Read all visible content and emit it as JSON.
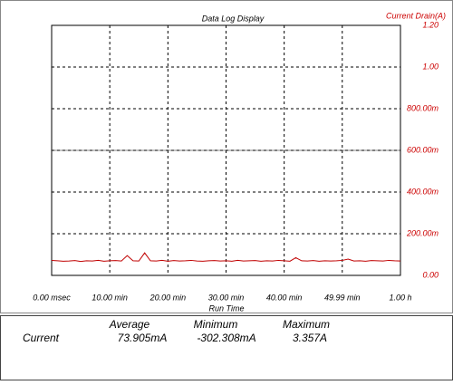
{
  "chart_data": {
    "type": "line",
    "title": "Data Log Display",
    "y_label": "Current Drain(A)",
    "x_label": "Run Time",
    "x": [
      0,
      1,
      2,
      3,
      4,
      5,
      6,
      7,
      8,
      9,
      10,
      11,
      12,
      13,
      14,
      15,
      16,
      17,
      18,
      19,
      20,
      21,
      22,
      23,
      24,
      25,
      26,
      27,
      28,
      29,
      30,
      31,
      32,
      33,
      34,
      35,
      36,
      37,
      38,
      39,
      40,
      41,
      42,
      43,
      44,
      45,
      46,
      47,
      48,
      49,
      50,
      51,
      52,
      53,
      54,
      55,
      56,
      57,
      58,
      59,
      60
    ],
    "values": [
      0.072,
      0.07,
      0.068,
      0.069,
      0.071,
      0.067,
      0.07,
      0.069,
      0.072,
      0.068,
      0.07,
      0.071,
      0.069,
      0.095,
      0.07,
      0.069,
      0.108,
      0.07,
      0.069,
      0.072,
      0.068,
      0.071,
      0.069,
      0.07,
      0.072,
      0.069,
      0.068,
      0.07,
      0.071,
      0.069,
      0.07,
      0.068,
      0.072,
      0.069,
      0.07,
      0.071,
      0.068,
      0.07,
      0.069,
      0.072,
      0.07,
      0.068,
      0.085,
      0.07,
      0.069,
      0.071,
      0.068,
      0.07,
      0.069,
      0.07,
      0.072,
      0.078,
      0.069,
      0.07,
      0.068,
      0.071,
      0.07,
      0.069,
      0.072,
      0.07,
      0.069
    ],
    "color": "#c00000",
    "axis_color": "#cc0000",
    "xlim": [
      0,
      60
    ],
    "xticks": [
      {
        "value": 0,
        "label": "0.00 msec"
      },
      {
        "value": 10,
        "label": "10.00 min"
      },
      {
        "value": 20,
        "label": "20.00 min"
      },
      {
        "value": 30,
        "label": "30.00 min"
      },
      {
        "value": 40,
        "label": "40.00 min"
      },
      {
        "value": 49.99,
        "label": "49.99 min"
      },
      {
        "value": 60,
        "label": "1.00 h"
      }
    ],
    "ylim": [
      0,
      1.2
    ],
    "yticks": [
      {
        "value": 0,
        "label": "0.00"
      },
      {
        "value": 0.2,
        "label": "200.00m"
      },
      {
        "value": 0.4,
        "label": "400.00m"
      },
      {
        "value": 0.6,
        "label": "600.00m"
      },
      {
        "value": 0.8,
        "label": "800.00m"
      },
      {
        "value": 1,
        "label": "1.00"
      },
      {
        "value": 1.2,
        "label": "1.20"
      }
    ],
    "grid": true
  },
  "stats": {
    "headers": [
      "Average",
      "Minimum",
      "Maximum"
    ],
    "rows": [
      [
        "Current",
        "73.905mA",
        "-302.308mA",
        "3.357A"
      ]
    ]
  }
}
